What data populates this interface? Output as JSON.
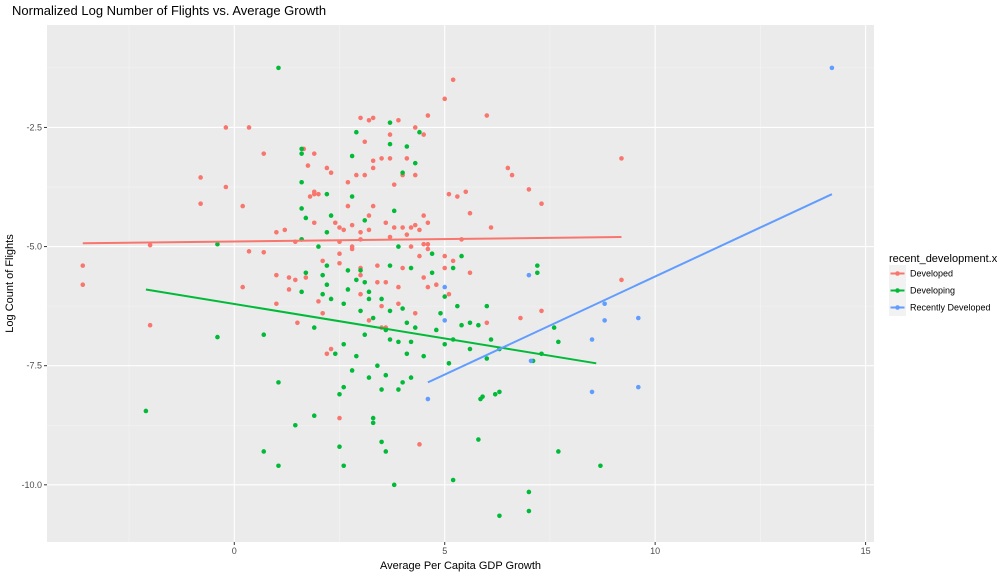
{
  "chart_data": {
    "type": "scatter",
    "title": "Normalized Log Number of Flights vs. Average Growth",
    "xlabel": "Average Per Capita GDP Growth",
    "ylabel": "Log Count of Flights",
    "xlim": [
      -4.45,
      15.2
    ],
    "ylim": [
      -11.2,
      -0.35
    ],
    "x_ticks": [
      0,
      5,
      10,
      15
    ],
    "y_ticks": [
      -2.5,
      -5,
      -7.5,
      -10
    ],
    "x_tick_labels": [
      "0",
      "5",
      "10",
      "15"
    ],
    "y_tick_labels": [
      "-2.5",
      "-5.0",
      "-7.5",
      "-10.0"
    ],
    "grid": true,
    "legend_position": "right",
    "legend_title": "recent_development.x",
    "series": [
      {
        "name": "Developed",
        "color": "#F8766D",
        "trend": [
          [
            -3.6,
            -4.93
          ],
          [
            9.2,
            -4.8
          ]
        ],
        "points": [
          [
            -3.6,
            -5.4
          ],
          [
            -3.6,
            -5.8
          ],
          [
            -2.0,
            -4.97
          ],
          [
            -2.0,
            -6.65
          ],
          [
            -0.8,
            -3.55
          ],
          [
            -0.8,
            -4.1
          ],
          [
            -0.2,
            -2.5
          ],
          [
            -0.2,
            -3.75
          ],
          [
            0.2,
            -4.15
          ],
          [
            0.2,
            -5.85
          ],
          [
            0.35,
            -2.5
          ],
          [
            0.35,
            -5.1
          ],
          [
            0.7,
            -3.05
          ],
          [
            0.7,
            -5.12
          ],
          [
            1.0,
            -4.7
          ],
          [
            1.0,
            -5.6
          ],
          [
            1.0,
            -6.2
          ],
          [
            1.2,
            -4.65
          ],
          [
            1.3,
            -5.65
          ],
          [
            1.3,
            -5.9
          ],
          [
            1.45,
            -4.9
          ],
          [
            1.45,
            -5.7
          ],
          [
            1.5,
            -6.6
          ],
          [
            1.6,
            -4.85
          ],
          [
            1.65,
            -2.95
          ],
          [
            1.7,
            -5.65
          ],
          [
            1.75,
            -3.3
          ],
          [
            1.8,
            -3.95
          ],
          [
            1.9,
            -3.85
          ],
          [
            1.9,
            -4.5
          ],
          [
            1.9,
            -3.9
          ],
          [
            1.9,
            -3.05
          ],
          [
            2.0,
            -6.15
          ],
          [
            2.0,
            -3.9
          ],
          [
            2.1,
            -5.3
          ],
          [
            2.1,
            -6.4
          ],
          [
            2.2,
            -3.35
          ],
          [
            2.2,
            -7.25
          ],
          [
            2.3,
            -7.15
          ],
          [
            2.3,
            -3.45
          ],
          [
            2.4,
            -4.5
          ],
          [
            2.5,
            -4.6
          ],
          [
            2.5,
            -4.9
          ],
          [
            2.5,
            -5.15
          ],
          [
            2.5,
            -5.35
          ],
          [
            2.5,
            -8.6
          ],
          [
            2.6,
            -4.65
          ],
          [
            2.7,
            -3.65
          ],
          [
            2.7,
            -4.15
          ],
          [
            2.8,
            -4.55
          ],
          [
            2.8,
            -5.0
          ],
          [
            2.8,
            -5.05
          ],
          [
            2.9,
            -3.5
          ],
          [
            3.0,
            -4.7
          ],
          [
            3.0,
            -4.85
          ],
          [
            3.0,
            -5.45
          ],
          [
            3.0,
            -5.6
          ],
          [
            3.0,
            -6.0
          ],
          [
            3.0,
            -2.3
          ],
          [
            3.1,
            -2.8
          ],
          [
            3.1,
            -3.5
          ],
          [
            3.2,
            -2.35
          ],
          [
            3.2,
            -4.35
          ],
          [
            3.2,
            -4.65
          ],
          [
            3.2,
            -6.55
          ],
          [
            3.3,
            -2.3
          ],
          [
            3.3,
            -3.2
          ],
          [
            3.3,
            -3.35
          ],
          [
            3.3,
            -4.15
          ],
          [
            3.4,
            -5.4
          ],
          [
            3.4,
            -5.75
          ],
          [
            3.5,
            -3.15
          ],
          [
            3.5,
            -6.25
          ],
          [
            3.5,
            -6.7
          ],
          [
            3.6,
            -4.5
          ],
          [
            3.6,
            -5.75
          ],
          [
            3.6,
            -6.7
          ],
          [
            3.7,
            -2.65
          ],
          [
            3.7,
            -3.15
          ],
          [
            3.7,
            -4.8
          ],
          [
            3.8,
            -3.7
          ],
          [
            3.8,
            -4.6
          ],
          [
            3.9,
            -2.35
          ],
          [
            3.9,
            -5.85
          ],
          [
            3.9,
            -6.2
          ],
          [
            4.0,
            -3.5
          ],
          [
            4.0,
            -4.6
          ],
          [
            4.0,
            -5.45
          ],
          [
            4.1,
            -3.15
          ],
          [
            4.1,
            -4.75
          ],
          [
            4.2,
            -4.6
          ],
          [
            4.2,
            -5.0
          ],
          [
            4.3,
            -2.5
          ],
          [
            4.3,
            -3.5
          ],
          [
            4.3,
            -4.55
          ],
          [
            4.3,
            -6.4
          ],
          [
            4.4,
            -4.65
          ],
          [
            4.4,
            -5.2
          ],
          [
            4.4,
            -9.15
          ],
          [
            4.5,
            -2.65
          ],
          [
            4.5,
            -4.35
          ],
          [
            4.5,
            -4.95
          ],
          [
            4.5,
            -5.65
          ],
          [
            4.6,
            -4.5
          ],
          [
            4.6,
            -4.95
          ],
          [
            4.6,
            -5.05
          ],
          [
            4.6,
            -5.85
          ],
          [
            4.6,
            -2.25
          ],
          [
            4.8,
            -5.8
          ],
          [
            5.0,
            -1.9
          ],
          [
            5.0,
            -5.2
          ],
          [
            5.0,
            -5.45
          ],
          [
            5.1,
            -3.9
          ],
          [
            5.1,
            -6.0
          ],
          [
            5.2,
            -5.3
          ],
          [
            5.2,
            -1.5
          ],
          [
            5.3,
            -3.95
          ],
          [
            5.4,
            -4.85
          ],
          [
            5.5,
            -3.85
          ],
          [
            5.6,
            -4.3
          ],
          [
            5.6,
            -5.55
          ],
          [
            6.0,
            -6.6
          ],
          [
            6.0,
            -2.25
          ],
          [
            6.1,
            -4.6
          ],
          [
            6.5,
            -3.35
          ],
          [
            6.6,
            -3.5
          ],
          [
            6.8,
            -6.5
          ],
          [
            7.0,
            -3.8
          ],
          [
            7.3,
            -4.1
          ],
          [
            7.3,
            -6.35
          ],
          [
            9.2,
            -5.7
          ],
          [
            9.2,
            -3.15
          ]
        ]
      },
      {
        "name": "Developing",
        "color": "#00BA38",
        "trend": [
          [
            -2.1,
            -5.9
          ],
          [
            8.6,
            -7.45
          ]
        ],
        "points": [
          [
            -2.1,
            -8.45
          ],
          [
            -0.4,
            -4.95
          ],
          [
            -0.4,
            -6.9
          ],
          [
            0.7,
            -6.85
          ],
          [
            0.7,
            -9.3
          ],
          [
            1.05,
            -1.25
          ],
          [
            1.05,
            -7.85
          ],
          [
            1.05,
            -9.6
          ],
          [
            1.45,
            -8.75
          ],
          [
            1.6,
            -3.65
          ],
          [
            1.6,
            -2.95
          ],
          [
            1.6,
            -3.05
          ],
          [
            1.6,
            -4.2
          ],
          [
            1.6,
            -4.85
          ],
          [
            1.6,
            -5.95
          ],
          [
            1.7,
            -4.4
          ],
          [
            1.7,
            -5.55
          ],
          [
            1.9,
            -6.7
          ],
          [
            1.9,
            -8.55
          ],
          [
            2.0,
            -5.0
          ],
          [
            2.1,
            -5.6
          ],
          [
            2.1,
            -6.0
          ],
          [
            2.2,
            -4.7
          ],
          [
            2.2,
            -3.9
          ],
          [
            2.2,
            -5.4
          ],
          [
            2.2,
            -5.8
          ],
          [
            2.3,
            -4.35
          ],
          [
            2.3,
            -6.1
          ],
          [
            2.4,
            -7.25
          ],
          [
            2.5,
            -8.1
          ],
          [
            2.5,
            -9.2
          ],
          [
            2.6,
            -6.2
          ],
          [
            2.6,
            -7.05
          ],
          [
            2.6,
            -7.95
          ],
          [
            2.6,
            -9.6
          ],
          [
            2.7,
            -5.5
          ],
          [
            2.7,
            -5.9
          ],
          [
            2.8,
            -3.1
          ],
          [
            2.8,
            -3.95
          ],
          [
            2.8,
            -7.6
          ],
          [
            2.9,
            -2.6
          ],
          [
            2.9,
            -5.7
          ],
          [
            2.9,
            -7.3
          ],
          [
            3.0,
            -5.5
          ],
          [
            3.0,
            -6.35
          ],
          [
            3.1,
            -4.45
          ],
          [
            3.1,
            -5.75
          ],
          [
            3.1,
            -6.85
          ],
          [
            3.2,
            -5.95
          ],
          [
            3.2,
            -6.1
          ],
          [
            3.2,
            -7.75
          ],
          [
            3.3,
            -6.5
          ],
          [
            3.3,
            -8.6
          ],
          [
            3.3,
            -8.7
          ],
          [
            3.4,
            -7.5
          ],
          [
            3.5,
            -6.1
          ],
          [
            3.5,
            -8.0
          ],
          [
            3.5,
            -9.1
          ],
          [
            3.6,
            -6.75
          ],
          [
            3.6,
            -7.7
          ],
          [
            3.6,
            -9.3
          ],
          [
            3.7,
            -2.4
          ],
          [
            3.7,
            -2.85
          ],
          [
            3.7,
            -5.4
          ],
          [
            3.7,
            -6.35
          ],
          [
            3.7,
            -6.95
          ],
          [
            3.8,
            -4.25
          ],
          [
            3.8,
            -10.0
          ],
          [
            3.9,
            -5.0
          ],
          [
            3.9,
            -7.0
          ],
          [
            3.9,
            -8.0
          ],
          [
            4.0,
            -3.45
          ],
          [
            4.0,
            -6.3
          ],
          [
            4.0,
            -7.85
          ],
          [
            4.1,
            -2.9
          ],
          [
            4.1,
            -6.6
          ],
          [
            4.1,
            -7.25
          ],
          [
            4.2,
            -5.45
          ],
          [
            4.2,
            -7.0
          ],
          [
            4.2,
            -7.75
          ],
          [
            4.3,
            -3.25
          ],
          [
            4.3,
            -6.7
          ],
          [
            4.4,
            -2.6
          ],
          [
            4.5,
            -7.3
          ],
          [
            4.7,
            -5.15
          ],
          [
            4.7,
            -5.55
          ],
          [
            4.8,
            -6.75
          ],
          [
            4.9,
            -6.4
          ],
          [
            5.0,
            -6.05
          ],
          [
            5.0,
            -7.05
          ],
          [
            5.1,
            -7.45
          ],
          [
            5.2,
            -9.9
          ],
          [
            5.2,
            -6.95
          ],
          [
            5.2,
            -5.45
          ],
          [
            5.3,
            -6.25
          ],
          [
            5.4,
            -5.2
          ],
          [
            5.4,
            -6.65
          ],
          [
            5.6,
            -6.6
          ],
          [
            5.6,
            -7.15
          ],
          [
            5.8,
            -6.65
          ],
          [
            5.8,
            -9.05
          ],
          [
            5.85,
            -8.2
          ],
          [
            5.9,
            -8.15
          ],
          [
            6.0,
            -6.25
          ],
          [
            6.0,
            -7.35
          ],
          [
            6.1,
            -6.95
          ],
          [
            6.2,
            -8.1
          ],
          [
            6.3,
            -8.05
          ],
          [
            6.3,
            -10.65
          ],
          [
            6.3,
            -7.15
          ],
          [
            7.0,
            -10.15
          ],
          [
            7.0,
            -10.55
          ],
          [
            7.1,
            -7.4
          ],
          [
            7.2,
            -5.4
          ],
          [
            7.2,
            -5.55
          ],
          [
            7.3,
            -7.25
          ],
          [
            7.6,
            -6.7
          ],
          [
            7.7,
            -7.0
          ],
          [
            7.7,
            -9.3
          ],
          [
            8.7,
            -9.6
          ]
        ]
      },
      {
        "name": "Recently Developed",
        "color": "#619CFF",
        "trend": [
          [
            4.6,
            -7.85
          ],
          [
            14.2,
            -3.9
          ]
        ],
        "points": [
          [
            4.6,
            -8.2
          ],
          [
            5.0,
            -5.85
          ],
          [
            5.0,
            -6.55
          ],
          [
            7.0,
            -5.6
          ],
          [
            7.05,
            -7.4
          ],
          [
            8.5,
            -6.95
          ],
          [
            8.5,
            -8.05
          ],
          [
            8.8,
            -6.2
          ],
          [
            8.8,
            -6.55
          ],
          [
            9.6,
            -6.5
          ],
          [
            9.6,
            -7.95
          ],
          [
            14.2,
            -1.25
          ]
        ]
      }
    ]
  }
}
